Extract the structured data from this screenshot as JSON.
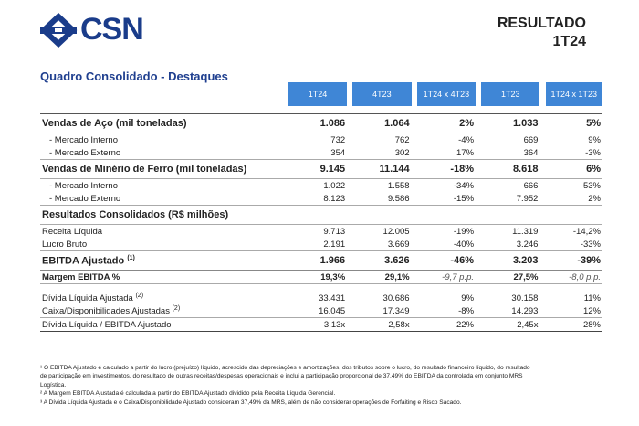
{
  "header": {
    "logo_text": "CSN",
    "result_line1": "RESULTADO",
    "result_line2": "1T24",
    "brand_color": "#1a3c8a"
  },
  "section_title": "Quadro Consolidado - Destaques",
  "columns": [
    "1T24",
    "4T23",
    "1T24 x 4T23",
    "1T23",
    "1T24 x 1T23"
  ],
  "header_color": "#3f86d6",
  "rows": {
    "vendas_aco": {
      "label": "Vendas de Aço (mil toneladas)",
      "v": [
        "1.086",
        "1.064",
        "2%",
        "1.033",
        "5%"
      ]
    },
    "aco_interno": {
      "label": "- Mercado Interno",
      "v": [
        "732",
        "762",
        "-4%",
        "669",
        "9%"
      ]
    },
    "aco_externo": {
      "label": "- Mercado Externo",
      "v": [
        "354",
        "302",
        "17%",
        "364",
        "-3%"
      ]
    },
    "vendas_minerio": {
      "label": "Vendas de Minério de Ferro (mil toneladas)",
      "v": [
        "9.145",
        "11.144",
        "-18%",
        "8.618",
        "6%"
      ]
    },
    "min_interno": {
      "label": "- Mercado Interno",
      "v": [
        "1.022",
        "1.558",
        "-34%",
        "666",
        "53%"
      ]
    },
    "min_externo": {
      "label": "- Mercado Externo",
      "v": [
        "8.123",
        "9.586",
        "-15%",
        "7.952",
        "2%"
      ]
    },
    "resultados": {
      "label": "Resultados Consolidados (R$ milhões)"
    },
    "receita": {
      "label": "Receita Líquida",
      "v": [
        "9.713",
        "12.005",
        "-19%",
        "11.319",
        "-14,2%"
      ]
    },
    "lucro": {
      "label": "Lucro Bruto",
      "v": [
        "2.191",
        "3.669",
        "-40%",
        "3.246",
        "-33%"
      ]
    },
    "ebitda": {
      "label": "EBITDA Ajustado",
      "sup": "(1)",
      "v": [
        "1.966",
        "3.626",
        "-46%",
        "3.203",
        "-39%"
      ]
    },
    "margem": {
      "label": "Margem EBITDA %",
      "v": [
        "19,3%",
        "29,1%",
        "-9,7 p.p.",
        "27,5%",
        "-8,0 p.p."
      ]
    },
    "divida": {
      "label": "Dívida Líquida Ajustada",
      "sup": "(2)",
      "v": [
        "33.431",
        "30.686",
        "9%",
        "30.158",
        "11%"
      ]
    },
    "caixa": {
      "label": "Caixa/Disponibilidades Ajustadas",
      "sup": "(2)",
      "v": [
        "16.045",
        "17.349",
        "-8%",
        "14.293",
        "12%"
      ]
    },
    "div_ebitda": {
      "label": "Dívida Líquida / EBITDA Ajustado",
      "v": [
        "3,13x",
        "2,58x",
        "22%",
        "2,45x",
        "28%"
      ]
    }
  },
  "footnotes": {
    "f1a": "¹ O EBITDA Ajustado é calculado a partir do lucro (prejuízo) líquido, acrescido das depreciações e amortizações, dos tributos sobre o lucro, do resultado financeiro líquido, do resultado",
    "f1b": "de participação em investimentos, do resultado de outras receitas/despesas operacionais e inclui a participação proporcional de 37,49% do EBITDA da controlada em conjunto MRS",
    "f1c": "Logística.",
    "f2": "² A Margem EBITDA Ajustada é calculada a partir do EBITDA Ajustado dividido pela Receita Líquida Gerencial.",
    "f3": "³ A Dívida Líquida Ajustada e o Caixa/Disponibilidade Ajustado consideram 37,49% da MRS, além de não considerar operações de Forfaiting e Risco Sacado."
  }
}
